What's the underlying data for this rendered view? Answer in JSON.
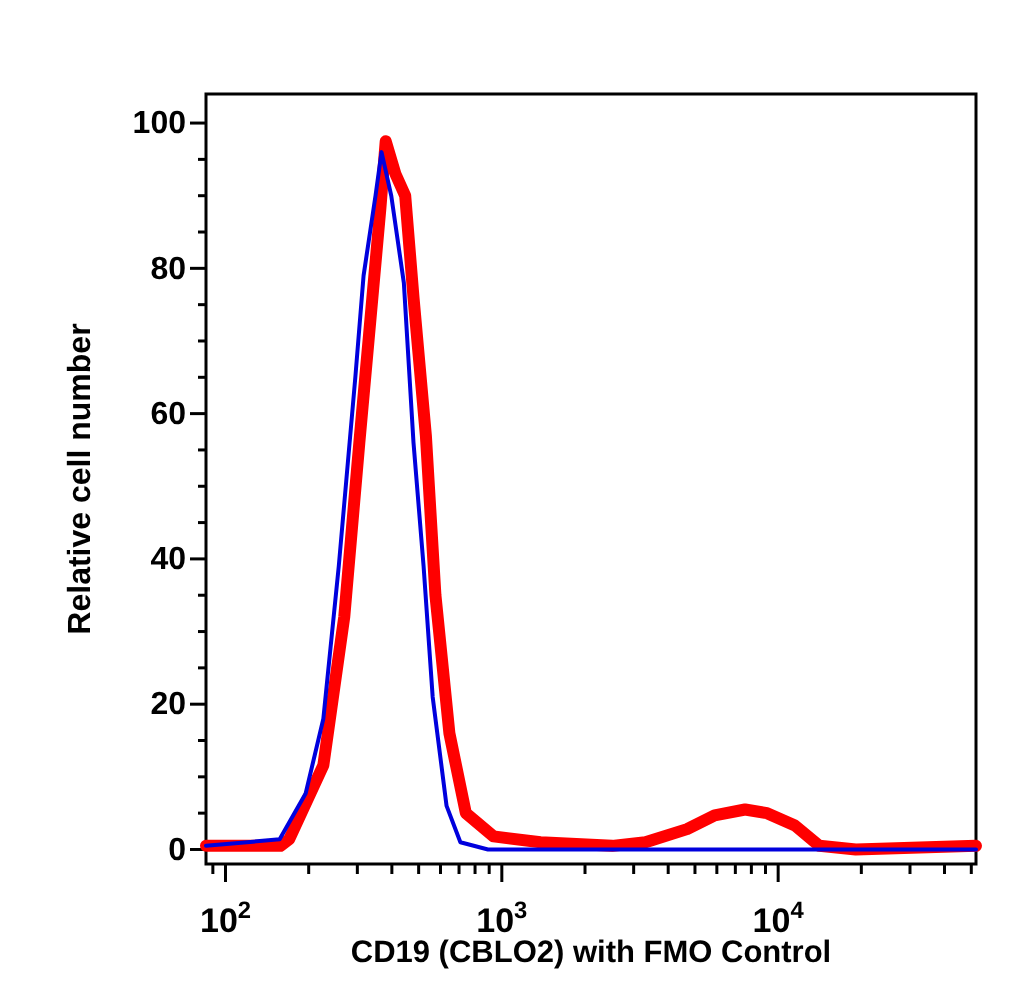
{
  "chart_data": {
    "type": "line",
    "xlabel": "CD19 (CBLO2) with FMO Control",
    "ylabel": "Relative cell number",
    "log": "x",
    "xlim": [
      85,
      52000
    ],
    "ylim": [
      -2,
      104
    ],
    "xticks": [
      {
        "value": 90,
        "label": null
      },
      {
        "value": 100,
        "label": "10$^{2}$"
      },
      {
        "value": 200,
        "label": null
      },
      {
        "value": 300,
        "label": null
      },
      {
        "value": 400,
        "label": null
      },
      {
        "value": 500,
        "label": null
      },
      {
        "value": 600,
        "label": null
      },
      {
        "value": 700,
        "label": null
      },
      {
        "value": 800,
        "label": null
      },
      {
        "value": 900,
        "label": null
      },
      {
        "value": 1000,
        "label": "10$^{3}$"
      },
      {
        "value": 2000,
        "label": null
      },
      {
        "value": 3000,
        "label": null
      },
      {
        "value": 4000,
        "label": null
      },
      {
        "value": 5000,
        "label": null
      },
      {
        "value": 6000,
        "label": null
      },
      {
        "value": 7000,
        "label": null
      },
      {
        "value": 8000,
        "label": null
      },
      {
        "value": 9000,
        "label": null
      },
      {
        "value": 10000,
        "label": "10$^{4}$"
      },
      {
        "value": 20000,
        "label": null
      },
      {
        "value": 30000,
        "label": null
      },
      {
        "value": 40000,
        "label": null
      },
      {
        "value": 50000,
        "label": null
      }
    ],
    "yticks": [
      0,
      {
        "value": 5,
        "label": null
      },
      {
        "value": 10,
        "label": null
      },
      {
        "value": 15,
        "label": null
      },
      20,
      {
        "value": 25,
        "label": null
      },
      {
        "value": 30,
        "label": null
      },
      {
        "value": 35,
        "label": null
      },
      40,
      {
        "value": 45,
        "label": null
      },
      {
        "value": 50,
        "label": null
      },
      {
        "value": 55,
        "label": null
      },
      60,
      {
        "value": 65,
        "label": null
      },
      {
        "value": 70,
        "label": null
      },
      {
        "value": 75,
        "label": null
      },
      80,
      {
        "value": 85,
        "label": null
      },
      {
        "value": 90,
        "label": null
      },
      {
        "value": 95,
        "label": null
      },
      100
    ],
    "marker": "none",
    "line_style": "solid",
    "series": [
      {
        "color": "#0000dd",
        "x": [
          85,
          157,
          195,
          226,
          257,
          295,
          316,
          349,
          367,
          398,
          442,
          479,
          521,
          562,
          631,
          708,
          891,
          3160,
          52000
        ],
        "values": [
          0.5,
          1.4,
          7.7,
          18,
          39,
          65,
          79,
          90,
          96,
          90,
          78,
          56,
          39,
          21,
          6,
          1,
          0,
          0,
          0
        ]
      },
      {
        "color": "#ff0000",
        "x": [
          85,
          158,
          170,
          226,
          269,
          305,
          331,
          363,
          380,
          412,
          447,
          479,
          531,
          575,
          646,
          741,
          933,
          1380,
          2510,
          3310,
          4680,
          5890,
          7590,
          9120,
          11500,
          14100,
          19100,
          52000
        ],
        "values": [
          0.5,
          0.5,
          1.4,
          11.6,
          32,
          56,
          71,
          88,
          97.5,
          93,
          90,
          76,
          57,
          35,
          16,
          5,
          1.8,
          1,
          0.5,
          1,
          2.8,
          4.7,
          5.5,
          5,
          3.3,
          0.5,
          0,
          0.5
        ]
      }
    ]
  }
}
